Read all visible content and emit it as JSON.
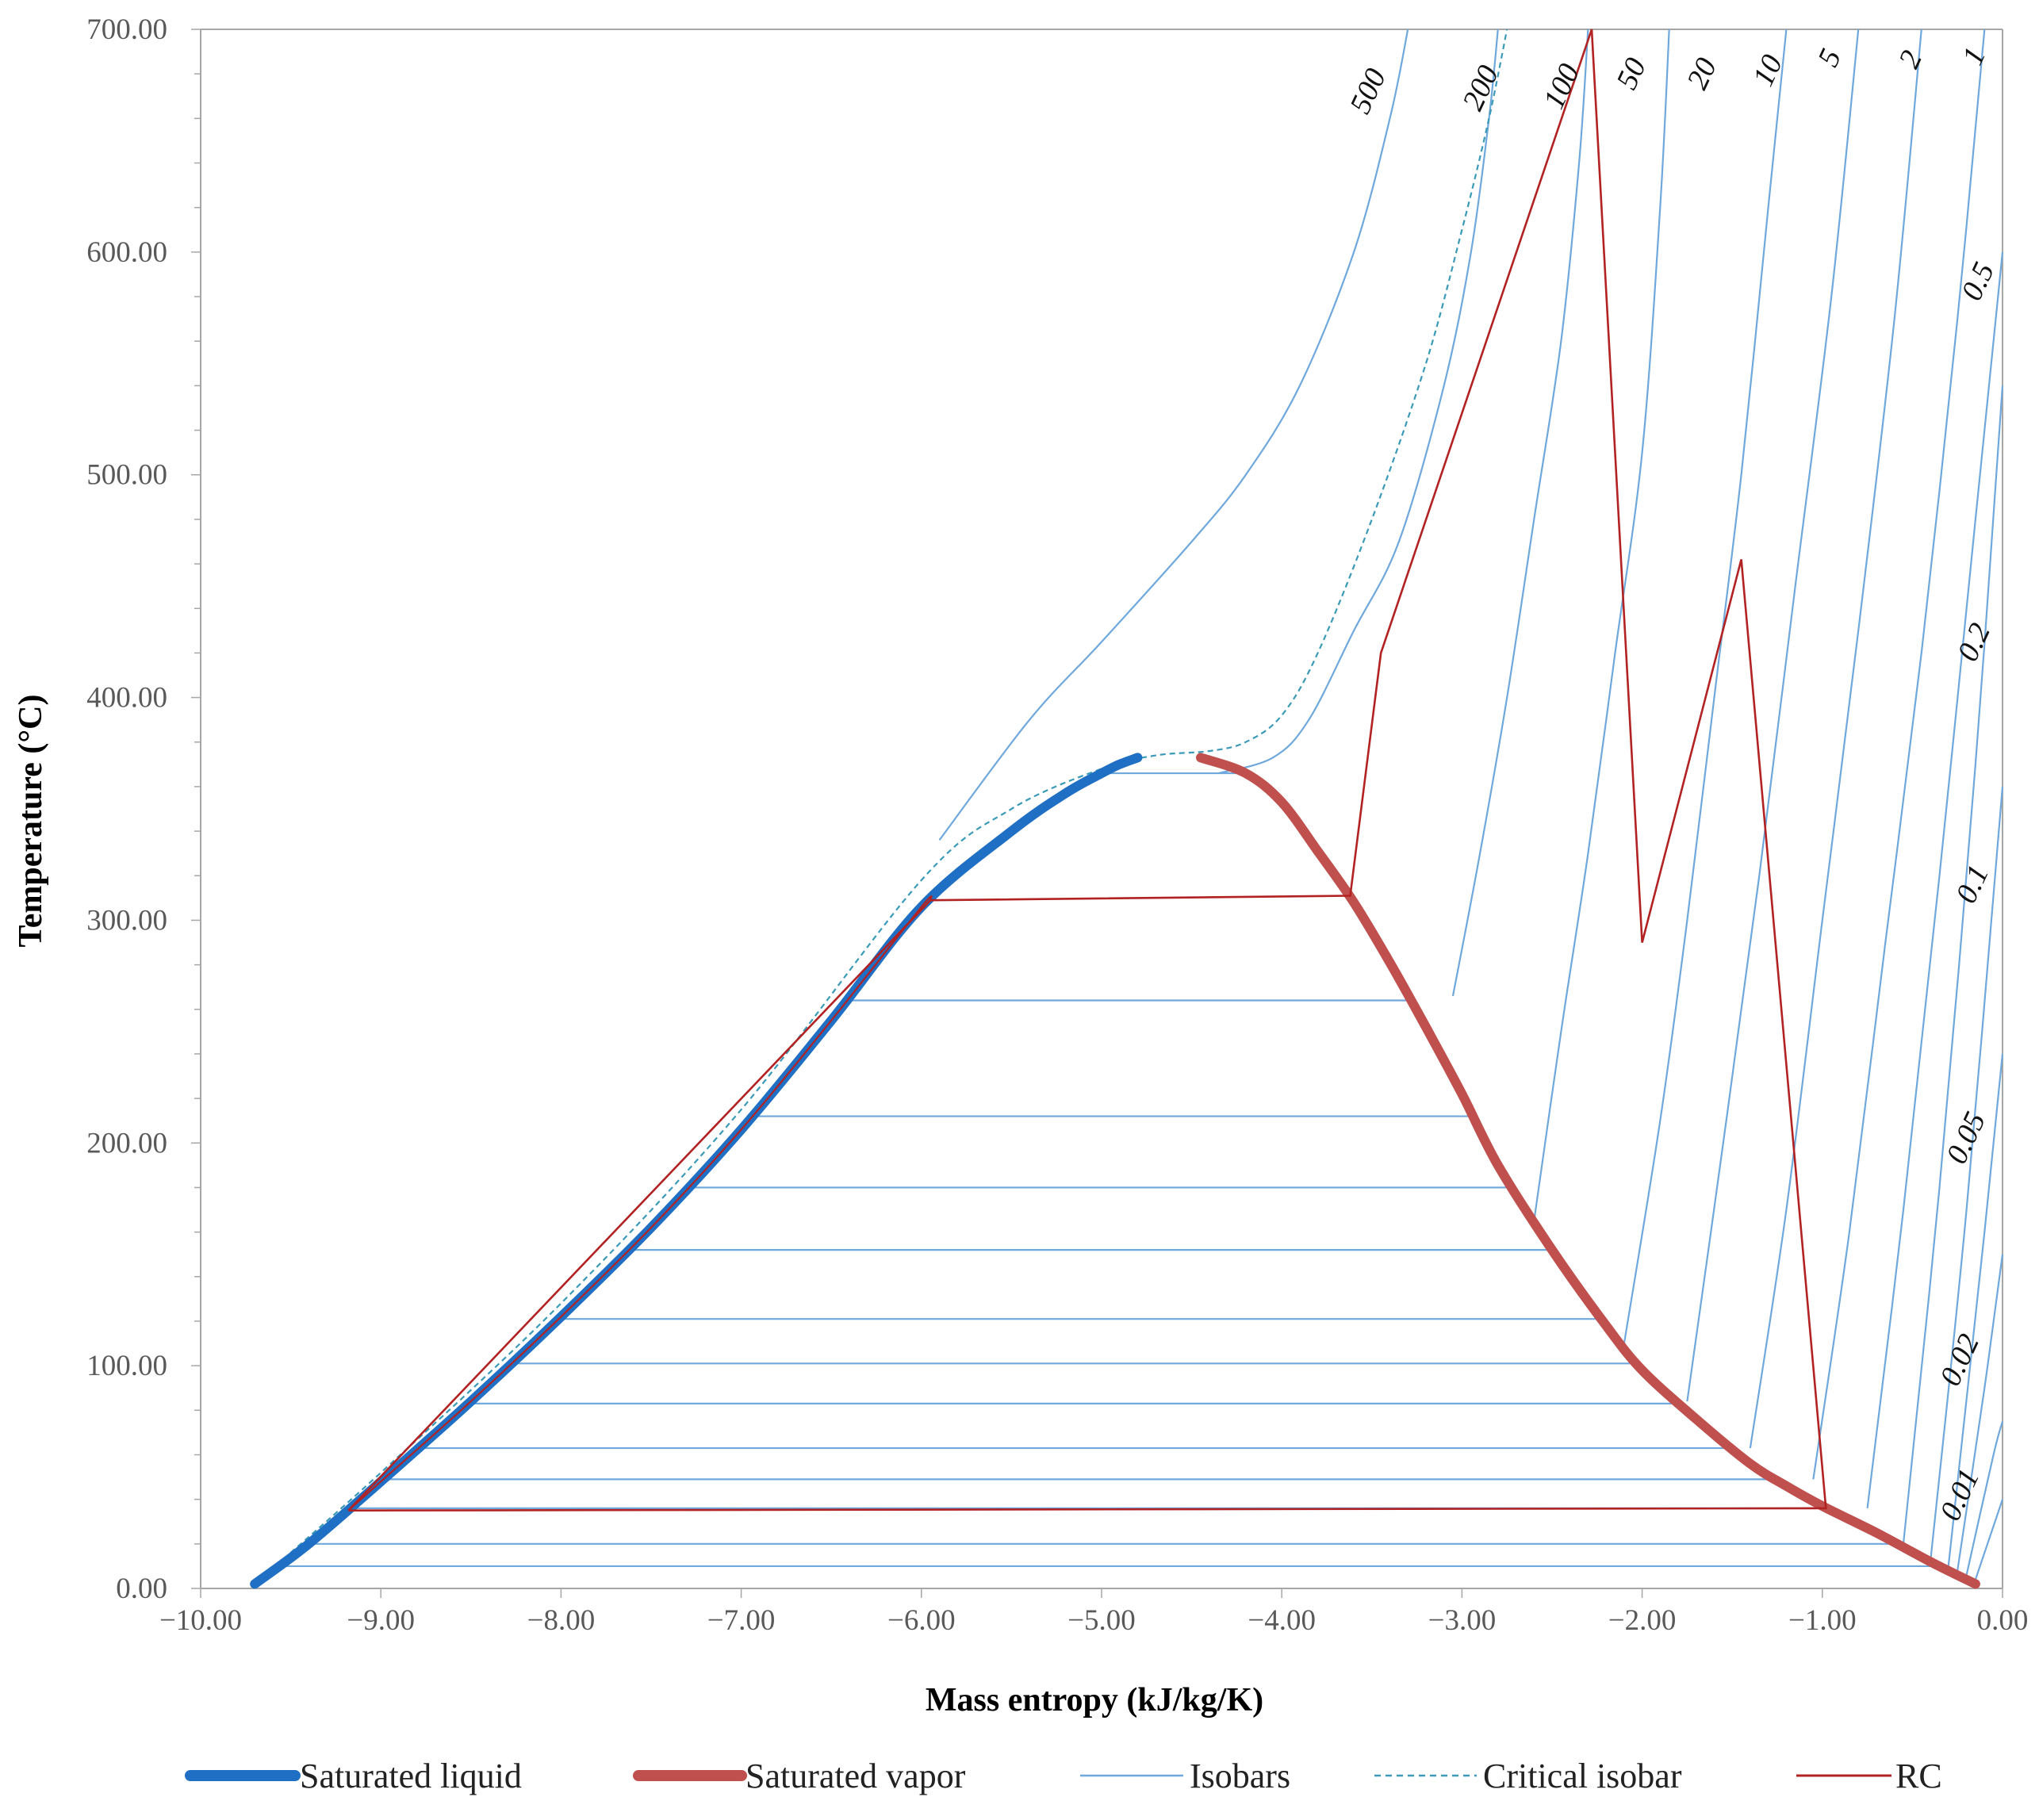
{
  "chart_data": {
    "type": "line",
    "title": "",
    "xlabel": "Mass entropy (kJ/kg/K)",
    "ylabel": "Temperature (°C)",
    "xlim": [
      -10,
      0
    ],
    "ylim": [
      0,
      700
    ],
    "grid": false,
    "x_ticks": [
      -10,
      -9,
      -8,
      -7,
      -6,
      -5,
      -4,
      -3,
      -2,
      -1,
      0
    ],
    "x_tick_labels": [
      "−10.00",
      "−9.00",
      "−8.00",
      "−7.00",
      "−6.00",
      "−5.00",
      "−4.00",
      "−3.00",
      "−2.00",
      "−1.00",
      "0.00"
    ],
    "y_ticks": [
      0,
      100,
      200,
      300,
      400,
      500,
      600,
      700
    ],
    "y_tick_labels": [
      "0.00",
      "100.00",
      "200.00",
      "300.00",
      "400.00",
      "500.00",
      "600.00",
      "700.00"
    ],
    "legend_position": "bottom",
    "colors": {
      "saturated_liquid": "#1f6fc4",
      "saturated_vapor": "#c0504d",
      "isobars": "#6fa8dc",
      "critical_isobar": "#3a9ab8",
      "rc": "#b22222",
      "axis": "#a6a6a6"
    },
    "series": [
      {
        "name": "Saturated liquid",
        "style": "thick-solid",
        "x": [
          -9.7,
          -9.4,
          -9.0,
          -8.5,
          -8.0,
          -7.5,
          -7.0,
          -6.5,
          -6.0,
          -5.5,
          -5.2,
          -5.0,
          -4.9,
          -4.8
        ],
        "y": [
          2,
          20,
          48,
          84,
          122,
          162,
          206,
          255,
          306,
          340,
          357,
          366,
          370,
          373
        ]
      },
      {
        "name": "Saturated vapor",
        "style": "thick-solid",
        "x": [
          -4.45,
          -4.2,
          -4.0,
          -3.8,
          -3.6,
          -3.4,
          -3.2,
          -3.0,
          -2.8,
          -2.5,
          -2.2,
          -2.0,
          -1.7,
          -1.4,
          -1.2,
          -1.0,
          -0.7,
          -0.4,
          -0.15
        ],
        "y": [
          373,
          366,
          353,
          331,
          308,
          281,
          252,
          222,
          190,
          152,
          118,
          98,
          76,
          56,
          46,
          37,
          25,
          12,
          2
        ]
      },
      {
        "name": "Isobars",
        "style": "thin-solid",
        "isotherm_temperatures": [
          10,
          20,
          36,
          49,
          63,
          83,
          101,
          121,
          152,
          180,
          212,
          264,
          366
        ],
        "superheated": [
          {
            "label": "500",
            "x": [
              -5.9,
              -5.4,
              -5.0,
              -4.5,
              -4.2,
              -3.9,
              -3.6,
              -3.4,
              -3.3
            ],
            "y": [
              336,
              390,
              425,
              470,
              500,
              540,
              600,
              660,
              700
            ]
          },
          {
            "label": "200",
            "x": [
              -4.35,
              -4.05,
              -3.85,
              -3.6,
              -3.35,
              -3.1,
              -2.95,
              -2.85,
              -2.8
            ],
            "y": [
              366,
              373,
              390,
              430,
              470,
              540,
              600,
              660,
              700
            ]
          },
          {
            "label": "100",
            "x": [
              -3.05,
              -2.9,
              -2.75,
              -2.6,
              -2.45,
              -2.35,
              -2.3
            ],
            "y": [
              266,
              330,
              400,
              480,
              560,
              640,
              700
            ]
          },
          {
            "label": "50",
            "x": [
              -2.6,
              -2.45,
              -2.3,
              -2.15,
              -2.0,
              -1.9,
              -1.85
            ],
            "y": [
              165,
              250,
              330,
              420,
              510,
              620,
              700
            ]
          },
          {
            "label": "20",
            "x": [
              -2.1,
              -1.9,
              -1.75,
              -1.6,
              -1.45,
              -1.3,
              -1.2
            ],
            "y": [
              110,
              210,
              300,
              400,
              500,
              620,
              700
            ]
          },
          {
            "label": "10",
            "x": [
              -1.75,
              -1.55,
              -1.35,
              -1.15,
              -0.95,
              -0.8
            ],
            "y": [
              84,
              200,
              320,
              450,
              580,
              700
            ]
          },
          {
            "label": "5",
            "x": [
              -1.4,
              -1.2,
              -1.0,
              -0.8,
              -0.6,
              -0.45
            ],
            "y": [
              63,
              170,
              300,
              430,
              570,
              700
            ]
          },
          {
            "label": "2",
            "x": [
              -1.05,
              -0.85,
              -0.65,
              -0.45,
              -0.25,
              -0.1
            ],
            "y": [
              49,
              160,
              290,
              420,
              570,
              700
            ]
          },
          {
            "label": "1",
            "x": [
              -0.75,
              -0.55,
              -0.35,
              -0.15,
              0.0
            ],
            "y": [
              36,
              170,
              320,
              480,
              600
            ]
          },
          {
            "label": "0.5",
            "x": [
              -0.55,
              -0.35,
              -0.15,
              0.0
            ],
            "y": [
              20,
              180,
              370,
              540
            ]
          },
          {
            "label": "0.2",
            "x": [
              -0.4,
              -0.2,
              0.0
            ],
            "y": [
              12,
              170,
              360
            ]
          },
          {
            "label": "0.1",
            "x": [
              -0.3,
              -0.1,
              0.0
            ],
            "y": [
              10,
              160,
              240
            ]
          },
          {
            "label": "0.05",
            "x": [
              -0.25,
              -0.1,
              0.0
            ],
            "y": [
              8,
              90,
              150
            ]
          },
          {
            "label": "0.02",
            "x": [
              -0.2,
              -0.05,
              0.0
            ],
            "y": [
              6,
              60,
              75
            ]
          },
          {
            "label": "0.01",
            "x": [
              -0.15,
              0.0
            ],
            "y": [
              4,
              40
            ]
          }
        ]
      },
      {
        "name": "Critical isobar",
        "style": "dashed",
        "x": [
          -9.7,
          -9.0,
          -8.0,
          -7.0,
          -6.0,
          -5.5,
          -5.0,
          -4.7,
          -4.4,
          -4.2,
          -4.0,
          -3.8,
          -3.5,
          -3.2,
          -3.0,
          -2.85,
          -2.75
        ],
        "y": [
          2,
          52,
          128,
          215,
          318,
          350,
          368,
          374,
          376,
          380,
          392,
          420,
          480,
          550,
          610,
          660,
          700
        ]
      },
      {
        "name": "RC",
        "style": "thin-solid",
        "x": [
          -9.18,
          -0.98,
          -1.45,
          -2.0,
          -2.28,
          -3.45,
          -3.62,
          -5.95,
          -9.18
        ],
        "y": [
          35,
          36,
          462,
          290,
          700,
          420,
          311,
          309,
          35
        ]
      }
    ],
    "isobar_labels": [
      "500",
      "200",
      "100",
      "50",
      "20",
      "10",
      "5",
      "2",
      "1",
      "0.5",
      "0.2",
      "0.1",
      "0.05",
      "0.02",
      "0.01"
    ]
  }
}
